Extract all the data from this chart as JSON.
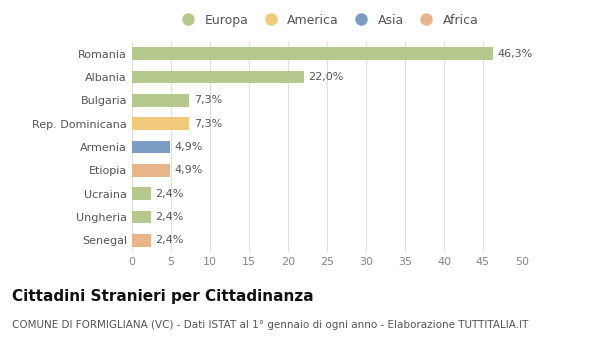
{
  "categories": [
    "Romania",
    "Albania",
    "Bulgaria",
    "Rep. Dominicana",
    "Armenia",
    "Etiopia",
    "Ucraina",
    "Ungheria",
    "Senegal"
  ],
  "values": [
    46.3,
    22.0,
    7.3,
    7.3,
    4.9,
    4.9,
    2.4,
    2.4,
    2.4
  ],
  "labels": [
    "46,3%",
    "22,0%",
    "7,3%",
    "7,3%",
    "4,9%",
    "4,9%",
    "2,4%",
    "2,4%",
    "2,4%"
  ],
  "continents": [
    "Europa",
    "Europa",
    "Europa",
    "America",
    "Asia",
    "Africa",
    "Europa",
    "Europa",
    "Africa"
  ],
  "colors": {
    "Europa": "#b5c98e",
    "America": "#f0c97a",
    "Asia": "#7b9dc4",
    "Africa": "#e8b48a"
  },
  "legend_order": [
    "Europa",
    "America",
    "Asia",
    "Africa"
  ],
  "xlim": [
    0,
    50
  ],
  "xticks": [
    0,
    5,
    10,
    15,
    20,
    25,
    30,
    35,
    40,
    45,
    50
  ],
  "title": "Cittadini Stranieri per Cittadinanza",
  "subtitle": "COMUNE DI FORMIGLIANA (VC) - Dati ISTAT al 1° gennaio di ogni anno - Elaborazione TUTTITALIA.IT",
  "background_color": "#ffffff",
  "grid_color": "#e0e0e0",
  "bar_height": 0.55,
  "title_fontsize": 11,
  "subtitle_fontsize": 7.5,
  "label_fontsize": 8,
  "tick_fontsize": 8,
  "legend_fontsize": 9
}
